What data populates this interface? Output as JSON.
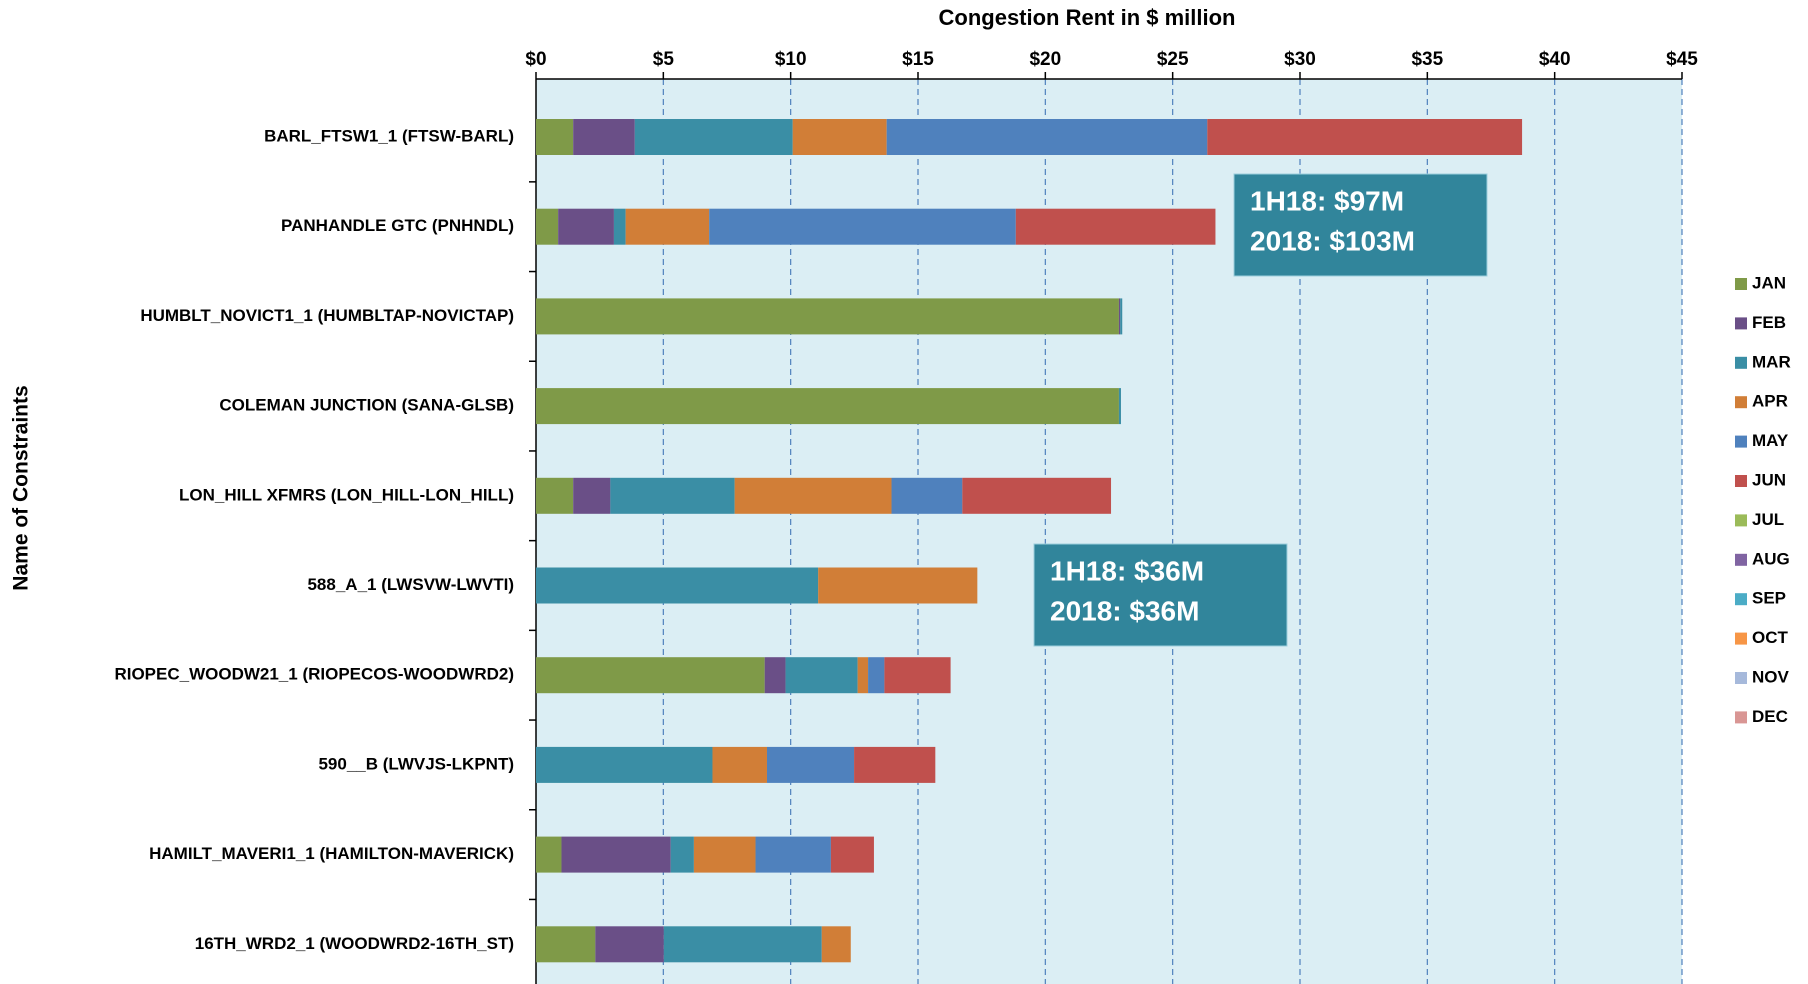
{
  "chart_data": {
    "type": "stacked-bar-horizontal",
    "title": "Congestion Rent in $ million",
    "y_label": "Name of Constraints",
    "categories": [
      "BARL_FTSW1_1 (FTSW-BARL)",
      "PANHANDLE GTC (PNHNDL)",
      "HUMBLT_NOVICT1_1 (HUMBLTAP-NOVICTAP)",
      "COLEMAN JUNCTION (SANA-GLSB)",
      "LON_HILL XFMRS (LON_HILL-LON_HILL)",
      "588_A_1 (LWSVW-LWVTI)",
      "RIOPEC_WOODW21_1 (RIOPECOS-WOODWRD2)",
      "590__B (LWVJS-LKPNT)",
      "HAMILT_MAVERI1_1 (HAMILTON-MAVERICK)",
      "16TH_WRD2_1 (WOODWRD2-16TH_ST)"
    ],
    "series": [
      {
        "name": "JAN",
        "color": "#7f9a48",
        "values": [
          1.46,
          0.87,
          22.89,
          22.89,
          1.46,
          0,
          8.98,
          0,
          1.0,
          2.33
        ]
      },
      {
        "name": "FEB",
        "color": "#6a4f87",
        "values": [
          2.42,
          2.19,
          0.05,
          0,
          1.46,
          0,
          0.82,
          0,
          4.29,
          2.69
        ]
      },
      {
        "name": "MAR",
        "color": "#3a8ea5",
        "values": [
          6.2,
          0.46,
          0.08,
          0.08,
          4.88,
          11.08,
          2.83,
          6.93,
          0.91,
          6.2
        ]
      },
      {
        "name": "APR",
        "color": "#d17e37",
        "values": [
          3.69,
          3.28,
          0,
          0,
          6.16,
          6.25,
          0.41,
          2.14,
          2.42,
          1.14
        ]
      },
      {
        "name": "MAY",
        "color": "#4f81bd",
        "values": [
          12.59,
          12.04,
          0,
          0,
          2.78,
          0,
          0.64,
          3.42,
          2.96,
          0
        ]
      },
      {
        "name": "JUN",
        "color": "#c0504d",
        "values": [
          12.36,
          7.84,
          0,
          0,
          5.84,
          0,
          2.6,
          3.19,
          1.69,
          0
        ]
      },
      {
        "name": "JUL",
        "color": "#9bbb59",
        "values": [
          0,
          0,
          0,
          0,
          0,
          0,
          0,
          0,
          0,
          0
        ]
      },
      {
        "name": "AUG",
        "color": "#8064a2",
        "values": [
          0,
          0,
          0,
          0,
          0,
          0,
          0,
          0,
          0,
          0
        ]
      },
      {
        "name": "SEP",
        "color": "#4bacc6",
        "values": [
          0,
          0,
          0,
          0,
          0,
          0,
          0,
          0,
          0,
          0
        ]
      },
      {
        "name": "OCT",
        "color": "#f79646",
        "values": [
          0,
          0,
          0,
          0,
          0,
          0,
          0,
          0,
          0,
          0
        ]
      },
      {
        "name": "NOV",
        "color": "#a6b9db",
        "values": [
          0,
          0,
          0,
          0,
          0,
          0,
          0,
          0,
          0,
          0
        ]
      },
      {
        "name": "DEC",
        "color": "#d99694",
        "values": [
          0,
          0,
          0,
          0,
          0,
          0,
          0,
          0,
          0,
          0
        ]
      }
    ],
    "xlim": [
      0,
      45
    ],
    "xticks": [
      {
        "value": 0,
        "label": "$0"
      },
      {
        "value": 5,
        "label": "$5"
      },
      {
        "value": 10,
        "label": "$10"
      },
      {
        "value": 15,
        "label": "$15"
      },
      {
        "value": 20,
        "label": "$20"
      },
      {
        "value": 25,
        "label": "$25"
      },
      {
        "value": 30,
        "label": "$30"
      },
      {
        "value": 35,
        "label": "$35"
      },
      {
        "value": 40,
        "label": "$40"
      },
      {
        "value": 45,
        "label": "$45"
      }
    ],
    "grid": true,
    "legend": "right",
    "annotations": [
      {
        "lines": [
          "1H18: $97M",
          "2018: $103M"
        ]
      },
      {
        "lines": [
          "1H18: $36M",
          "2018: $36M"
        ]
      }
    ]
  }
}
